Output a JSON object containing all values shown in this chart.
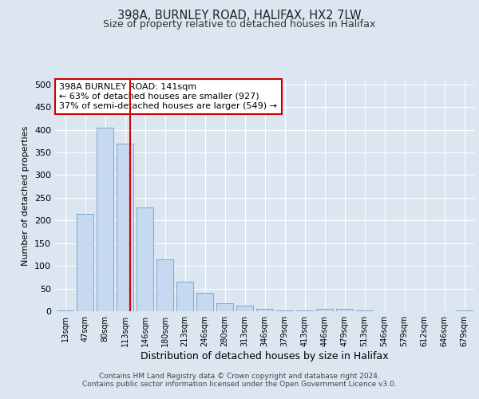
{
  "title1": "398A, BURNLEY ROAD, HALIFAX, HX2 7LW",
  "title2": "Size of property relative to detached houses in Halifax",
  "xlabel": "Distribution of detached houses by size in Halifax",
  "ylabel": "Number of detached properties",
  "bar_labels": [
    "13sqm",
    "47sqm",
    "80sqm",
    "113sqm",
    "146sqm",
    "180sqm",
    "213sqm",
    "246sqm",
    "280sqm",
    "313sqm",
    "346sqm",
    "379sqm",
    "413sqm",
    "446sqm",
    "479sqm",
    "513sqm",
    "546sqm",
    "579sqm",
    "612sqm",
    "646sqm",
    "679sqm"
  ],
  "bar_values": [
    2,
    215,
    405,
    370,
    228,
    115,
    65,
    40,
    18,
    12,
    6,
    2,
    2,
    6,
    6,
    2,
    0,
    0,
    0,
    0,
    2
  ],
  "bar_color": "#c6d9f0",
  "bar_edge_color": "#7ba7d4",
  "fig_background": "#dce6f1",
  "plot_background": "#dce6f1",
  "grid_color": "#ffffff",
  "red_line_x": 3.27,
  "annotation_text": "398A BURNLEY ROAD: 141sqm\n← 63% of detached houses are smaller (927)\n37% of semi-detached houses are larger (549) →",
  "annotation_box_color": "#ffffff",
  "annotation_box_edge": "#cc0000",
  "footnote_line1": "Contains HM Land Registry data © Crown copyright and database right 2024.",
  "footnote_line2": "Contains public sector information licensed under the Open Government Licence v3.0.",
  "ylim": [
    0,
    510
  ],
  "yticks": [
    0,
    50,
    100,
    150,
    200,
    250,
    300,
    350,
    400,
    450,
    500
  ]
}
